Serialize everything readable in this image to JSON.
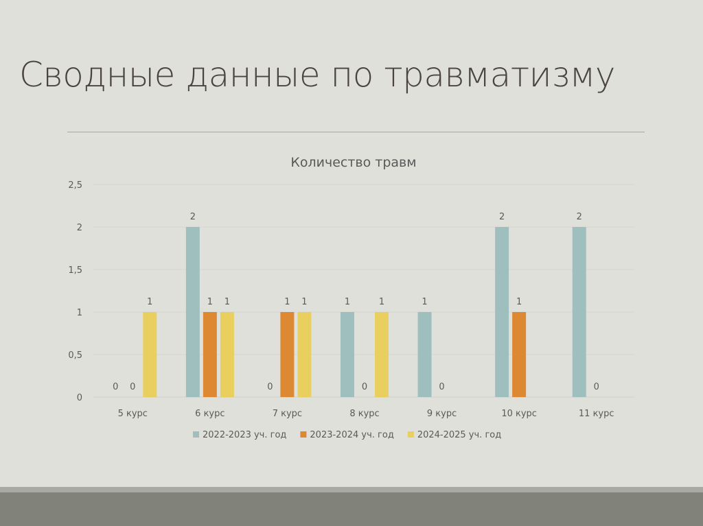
{
  "slide": {
    "title": "Сводные данные по травматизму"
  },
  "chart_data": {
    "type": "bar",
    "title": "Количество травм",
    "categories": [
      "5 курс",
      "6 курс",
      "7 курс",
      "8 курс",
      "9 курс",
      "10 курс",
      "11 курс"
    ],
    "series": [
      {
        "name": "2022-2023 уч. год",
        "color": "#9fbfbf",
        "values": [
          0,
          2,
          0,
          1,
          1,
          2,
          2
        ]
      },
      {
        "name": "2023-2024 уч. год",
        "color": "#dd8833",
        "values": [
          0,
          1,
          1,
          0,
          0,
          1,
          0
        ]
      },
      {
        "name": "2024-2025 уч. год",
        "color": "#e8cf5e",
        "values": [
          1,
          1,
          1,
          1,
          null,
          null,
          null
        ]
      }
    ],
    "yticks": [
      "0",
      "0,5",
      "1",
      "1,5",
      "2",
      "2,5"
    ],
    "ylim": [
      0,
      2.5
    ],
    "grid": true,
    "legend": "bottom",
    "xlabel": "",
    "ylabel": ""
  }
}
